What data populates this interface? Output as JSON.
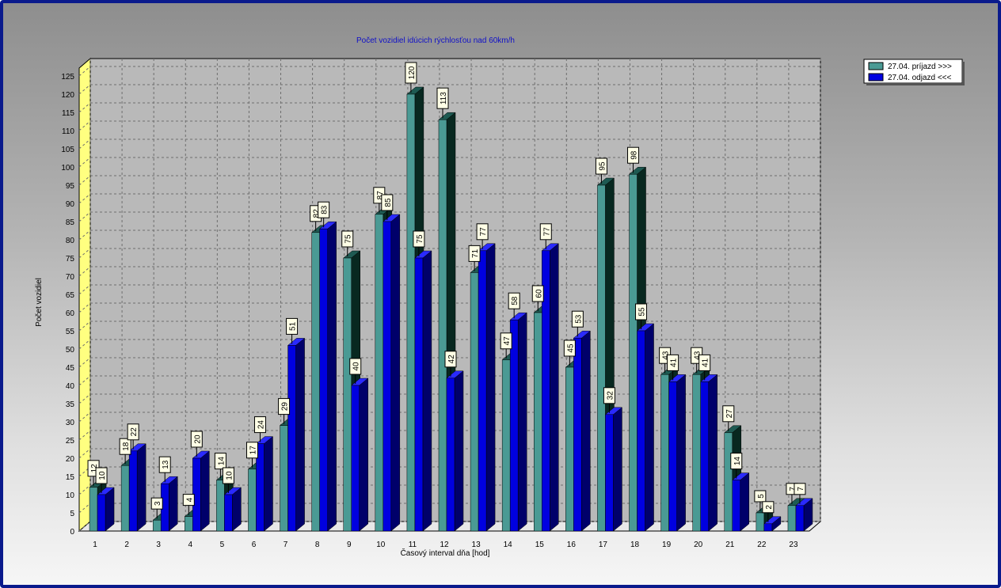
{
  "chart_data": {
    "type": "bar",
    "title": "Počet vozidiel idúcich rýchlosťou nad 60km/h",
    "xlabel": "Časový interval dňa [hod]",
    "ylabel": "Počet vozidiel",
    "ylim": [
      0,
      125
    ],
    "ytick_step": 5,
    "grid": true,
    "legend_position": "top-right",
    "categories": [
      "1",
      "2",
      "3",
      "4",
      "5",
      "6",
      "7",
      "8",
      "9",
      "10",
      "11",
      "12",
      "13",
      "14",
      "15",
      "16",
      "17",
      "18",
      "19",
      "20",
      "21",
      "22",
      "23"
    ],
    "series": [
      {
        "name": "27.04.  príjazd >>>",
        "color": "#4a9a94",
        "values": [
          12,
          18,
          3,
          4,
          14,
          17,
          29,
          82,
          75,
          87,
          120,
          113,
          71,
          47,
          60,
          45,
          95,
          98,
          43,
          43,
          27,
          5,
          7
        ]
      },
      {
        "name": "27.04.  odjazd <<<",
        "color": "#0000e0",
        "values": [
          10,
          22,
          13,
          20,
          10,
          24,
          51,
          83,
          40,
          85,
          75,
          42,
          77,
          58,
          77,
          53,
          32,
          55,
          41,
          41,
          14,
          2,
          7
        ]
      }
    ]
  }
}
